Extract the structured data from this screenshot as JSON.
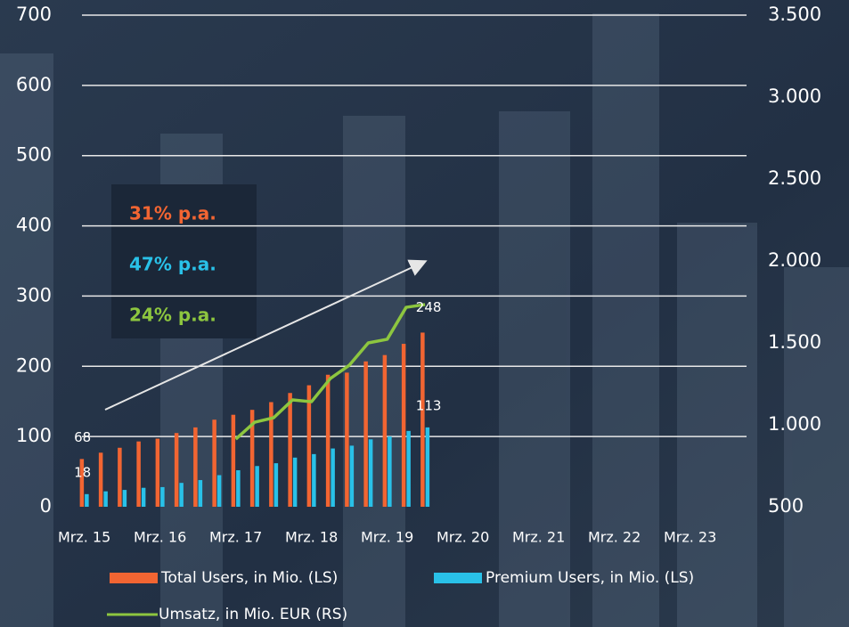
{
  "chart_data": {
    "type": "bar",
    "categories": [
      "Mrz. 15",
      null,
      null,
      null,
      "Mrz. 16",
      null,
      null,
      null,
      "Mrz. 17",
      null,
      null,
      null,
      "Mrz. 18",
      null,
      null,
      null,
      "Mrz. 19",
      null,
      null,
      null,
      "Mrz. 20",
      null,
      null,
      null,
      "Mrz. 21",
      null,
      null,
      null,
      "Mrz. 22",
      null,
      null,
      null,
      "Mrz. 23"
    ],
    "series": [
      {
        "name": "Total Users, in Mio. (LS)",
        "type": "bar",
        "color": "#f26532",
        "values": [
          68,
          77,
          84,
          93,
          97,
          105,
          113,
          124,
          131,
          138,
          149,
          162,
          173,
          188,
          191,
          207,
          216,
          232,
          248,
          null,
          null,
          null,
          null,
          null,
          null,
          null,
          null,
          null,
          null,
          null,
          null,
          null,
          null
        ]
      },
      {
        "name": "Premium Users, in Mio. (LS)",
        "type": "bar",
        "color": "#29c1e8",
        "values": [
          18,
          22,
          24,
          27,
          28,
          34,
          38,
          45,
          52,
          58,
          62,
          70,
          75,
          83,
          87,
          96,
          100,
          108,
          113,
          null,
          null,
          null,
          null,
          null,
          null,
          null,
          null,
          null,
          null,
          null,
          null,
          null,
          null
        ]
      },
      {
        "name": "Umsatz, in Mio. EUR (RS)",
        "type": "line",
        "axis": "y2",
        "color": "#8dc63f",
        "values": [
          null,
          null,
          null,
          null,
          null,
          null,
          null,
          null,
          913,
          1016,
          1043,
          1152,
          1141,
          1283,
          1364,
          1500,
          1522,
          1717,
          1734,
          null,
          null,
          null,
          null,
          null,
          null,
          null,
          null,
          null,
          null,
          null,
          null,
          null,
          null
        ]
      }
    ],
    "ylim": [
      0,
      700
    ],
    "yticks": [
      0,
      100,
      200,
      300,
      400,
      500,
      600,
      700
    ],
    "y2lim": [
      500,
      3500
    ],
    "y2ticks": [
      500,
      {
        "value": 1000,
        "label": "1.000"
      },
      {
        "value": 1500,
        "label": "1.500"
      },
      {
        "value": 2000,
        "label": "2.000"
      },
      {
        "value": 2500,
        "label": "2.500"
      },
      {
        "value": 3000,
        "label": "3.000"
      },
      {
        "value": 3500,
        "label": "3.500"
      }
    ],
    "grid": true,
    "legend": "bottom",
    "annotations": [
      {
        "text": "31% p.a.",
        "color": "#f26532"
      },
      {
        "text": "47% p.a.",
        "color": "#29c1e8"
      },
      {
        "text": "24% p.a.",
        "color": "#8dc63f"
      }
    ]
  }
}
